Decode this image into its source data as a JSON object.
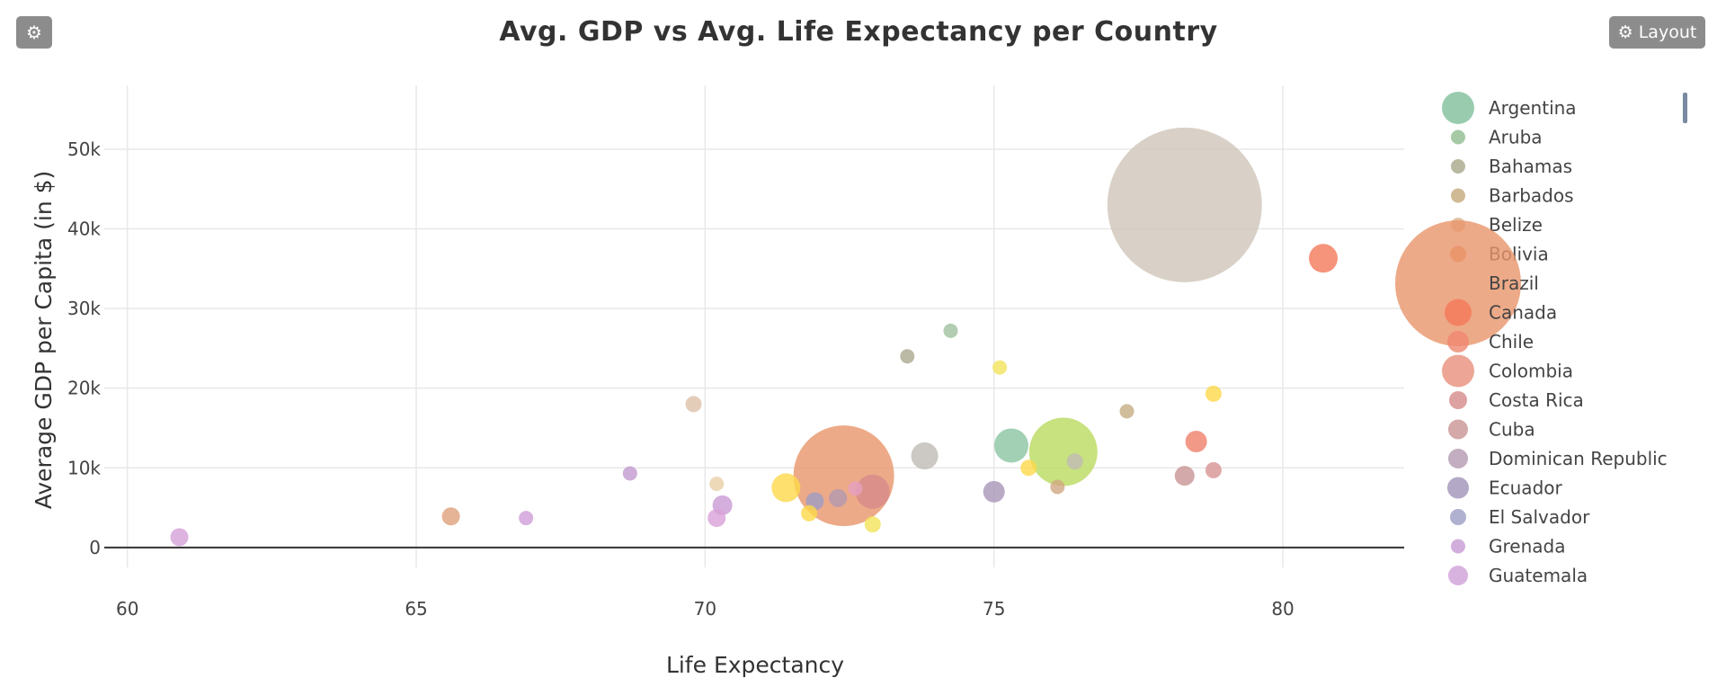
{
  "toolbar": {
    "settings_icon": "gear-icon",
    "layout_label": "Layout"
  },
  "chart_data": {
    "type": "scatter",
    "title": "Avg. GDP vs Avg. Life Expectancy per Country",
    "xlabel": "Life Expectancy",
    "ylabel": "Average GDP per Capita (in $)",
    "xlim": [
      59.6,
      82.1
    ],
    "ylim": [
      -2500,
      58000
    ],
    "xticks": [
      60,
      65,
      70,
      75,
      80
    ],
    "yticks": [
      0,
      10000,
      20000,
      30000,
      40000,
      50000
    ],
    "ytick_labels": [
      "0",
      "10k",
      "20k",
      "30k",
      "40k",
      "50k"
    ],
    "grid": true,
    "legend_position": "right",
    "legend": [
      {
        "name": "Argentina",
        "color": "#7fbf9b",
        "size": 36
      },
      {
        "name": "Aruba",
        "color": "#8fbd8e",
        "size": 16
      },
      {
        "name": "Bahamas",
        "color": "#a8a88a",
        "size": 16
      },
      {
        "name": "Barbados",
        "color": "#c4a77a",
        "size": 16
      },
      {
        "name": "Belize",
        "color": "#dcb48c",
        "size": 16
      },
      {
        "name": "Bolivia",
        "color": "#e88b5e",
        "size": 18
      },
      {
        "name": "Brazil",
        "color": "#e8956a",
        "size": 140
      },
      {
        "name": "Canada",
        "color": "#f4785a",
        "size": 30
      },
      {
        "name": "Chile",
        "color": "#ef8670",
        "size": 24
      },
      {
        "name": "Colombia",
        "color": "#e8907a",
        "size": 36
      },
      {
        "name": "Costa Rica",
        "color": "#d68a8a",
        "size": 20
      },
      {
        "name": "Cuba",
        "color": "#c99494",
        "size": 22
      },
      {
        "name": "Dominican Republic",
        "color": "#b498b0",
        "size": 22
      },
      {
        "name": "Ecuador",
        "color": "#a092b8",
        "size": 24
      },
      {
        "name": "El Salvador",
        "color": "#9c9cc4",
        "size": 18
      },
      {
        "name": "Grenada",
        "color": "#c79ad4",
        "size": 16
      },
      {
        "name": "Guatemala",
        "color": "#cfa0d8",
        "size": 22
      }
    ],
    "points": [
      {
        "x": 78.3,
        "y": 43000,
        "r": 86,
        "color": "#cfc5b9"
      },
      {
        "x": 72.4,
        "y": 9000,
        "r": 56,
        "color": "#e8956a"
      },
      {
        "x": 76.2,
        "y": 12000,
        "r": 38,
        "color": "#b9db5e"
      },
      {
        "x": 80.7,
        "y": 36300,
        "r": 16,
        "color": "#f4785a"
      },
      {
        "x": 75.3,
        "y": 12800,
        "r": 19,
        "color": "#89c4a1"
      },
      {
        "x": 72.9,
        "y": 7000,
        "r": 19,
        "color": "#d68a8a"
      },
      {
        "x": 73.8,
        "y": 11500,
        "r": 15,
        "color": "#bfbab4"
      },
      {
        "x": 71.4,
        "y": 7500,
        "r": 16,
        "color": "#fcd84a"
      },
      {
        "x": 74.25,
        "y": 27200,
        "r": 8,
        "color": "#9fc09f"
      },
      {
        "x": 73.5,
        "y": 24000,
        "r": 8,
        "color": "#aaa98e"
      },
      {
        "x": 75.1,
        "y": 22600,
        "r": 8,
        "color": "#f2e35a"
      },
      {
        "x": 78.8,
        "y": 19300,
        "r": 9,
        "color": "#fcd84a"
      },
      {
        "x": 69.8,
        "y": 18000,
        "r": 9,
        "color": "#dcc0a8"
      },
      {
        "x": 77.3,
        "y": 17100,
        "r": 8,
        "color": "#c4ac82"
      },
      {
        "x": 78.5,
        "y": 13300,
        "r": 12,
        "color": "#ef7f6a"
      },
      {
        "x": 78.3,
        "y": 9000,
        "r": 11,
        "color": "#c99494"
      },
      {
        "x": 78.8,
        "y": 9700,
        "r": 9,
        "color": "#d89494"
      },
      {
        "x": 76.4,
        "y": 10800,
        "r": 9,
        "color": "#c0bbb5"
      },
      {
        "x": 75.6,
        "y": 10000,
        "r": 9,
        "color": "#fcd84a"
      },
      {
        "x": 76.1,
        "y": 7600,
        "r": 8,
        "color": "#cfa882"
      },
      {
        "x": 75.0,
        "y": 7000,
        "r": 12,
        "color": "#a896b8"
      },
      {
        "x": 68.7,
        "y": 9300,
        "r": 8,
        "color": "#c39ad0"
      },
      {
        "x": 70.2,
        "y": 8000,
        "r": 8,
        "color": "#e8d0a6"
      },
      {
        "x": 72.6,
        "y": 7400,
        "r": 8,
        "color": "#e5a0c0"
      },
      {
        "x": 72.3,
        "y": 6200,
        "r": 10,
        "color": "#b298b0"
      },
      {
        "x": 71.9,
        "y": 5800,
        "r": 10,
        "color": "#9d9cc4"
      },
      {
        "x": 70.3,
        "y": 5300,
        "r": 11,
        "color": "#c99ad4"
      },
      {
        "x": 71.8,
        "y": 4300,
        "r": 9,
        "color": "#fcd84a"
      },
      {
        "x": 72.9,
        "y": 2900,
        "r": 9,
        "color": "#f2e35a"
      },
      {
        "x": 70.2,
        "y": 3700,
        "r": 10,
        "color": "#d8a0d8"
      },
      {
        "x": 65.6,
        "y": 3900,
        "r": 10,
        "color": "#dfa07a"
      },
      {
        "x": 66.9,
        "y": 3700,
        "r": 8,
        "color": "#cf9cd8"
      },
      {
        "x": 60.9,
        "y": 1300,
        "r": 10,
        "color": "#d4a0d8"
      }
    ]
  }
}
